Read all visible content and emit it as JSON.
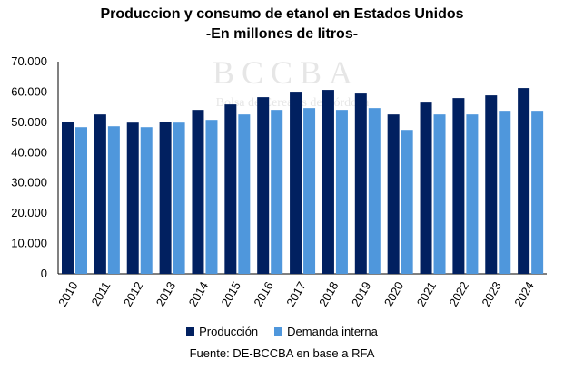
{
  "chart_data": {
    "type": "bar",
    "title": "Produccion y consumo de etanol en Estados Unidos",
    "subtitle": "-En millones de litros-",
    "categories": [
      "2010",
      "2011",
      "2012",
      "2013",
      "2014",
      "2015",
      "2016",
      "2017",
      "2018",
      "2019",
      "2020",
      "2021",
      "2022",
      "2023",
      "2024"
    ],
    "series": [
      {
        "name": "Producción",
        "color": "#012060",
        "values": [
          50200,
          52600,
          49900,
          50200,
          54100,
          55900,
          58300,
          60100,
          60700,
          59500,
          52600,
          56500,
          58000,
          58900,
          61300
        ]
      },
      {
        "name": "Demanda interna",
        "color": "#4f97dc",
        "values": [
          48400,
          48700,
          48400,
          49900,
          50800,
          52600,
          54100,
          54700,
          54100,
          54700,
          47500,
          52600,
          52600,
          53800,
          53800
        ]
      }
    ],
    "yticks": [
      "0",
      "10.000",
      "20.000",
      "30.000",
      "40.000",
      "50.000",
      "60.000",
      "70.000"
    ],
    "ylim": [
      0,
      70000
    ],
    "xlabel": "",
    "ylabel": "",
    "legend": "bottom",
    "grid": false
  },
  "source": "Fuente: DE-BCCBA en base a RFA",
  "watermark": {
    "name": "BCCBA",
    "sub": "Bolsa de Cereales de Córdoba"
  }
}
